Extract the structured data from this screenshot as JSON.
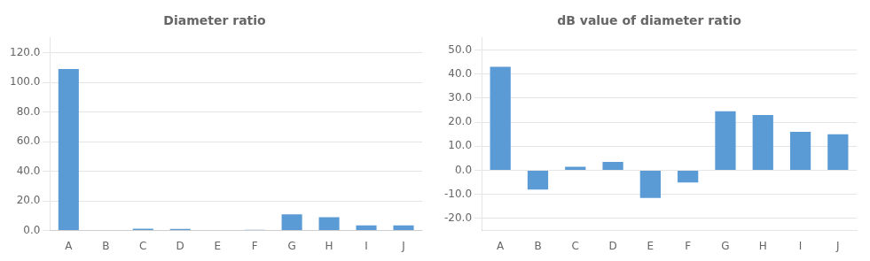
{
  "chart_data": [
    {
      "type": "bar",
      "title": "Diameter ratio",
      "categories": [
        "A",
        "B",
        "C",
        "D",
        "E",
        "F",
        "G",
        "H",
        "I",
        "J"
      ],
      "values": [
        109.0,
        0.0,
        1.2,
        1.1,
        0.0,
        0.5,
        11.0,
        9.0,
        3.5,
        3.5
      ],
      "color": "#5B9BD5",
      "ylim": [
        0,
        130
      ],
      "yticks": [
        {
          "value": 0,
          "label": "0.0"
        },
        {
          "value": 20,
          "label": "20.0"
        },
        {
          "value": 40,
          "label": "40.0"
        },
        {
          "value": 60,
          "label": "60.0"
        },
        {
          "value": 80,
          "label": "80.0"
        },
        {
          "value": 100,
          "label": "100.0"
        },
        {
          "value": 120,
          "label": "120.0"
        }
      ],
      "grid": true
    },
    {
      "type": "bar",
      "title": "dB value of diameter ratio",
      "categories": [
        "A",
        "B",
        "C",
        "D",
        "E",
        "F",
        "G",
        "H",
        "I",
        "J"
      ],
      "values": [
        43.0,
        -8.0,
        1.5,
        3.5,
        -11.5,
        -5.0,
        24.5,
        23.0,
        16.0,
        15.0
      ],
      "color": "#5B9BD5",
      "ylim": [
        -25,
        55
      ],
      "yticks": [
        {
          "value": -20,
          "label": "-20.0"
        },
        {
          "value": -10,
          "label": "-10.0"
        },
        {
          "value": 0,
          "label": "0.0"
        },
        {
          "value": 10,
          "label": "10.0"
        },
        {
          "value": 20,
          "label": "20.0"
        },
        {
          "value": 30,
          "label": "30.0"
        },
        {
          "value": 40,
          "label": "40.0"
        },
        {
          "value": 50,
          "label": "50.0"
        }
      ],
      "grid": true
    }
  ]
}
